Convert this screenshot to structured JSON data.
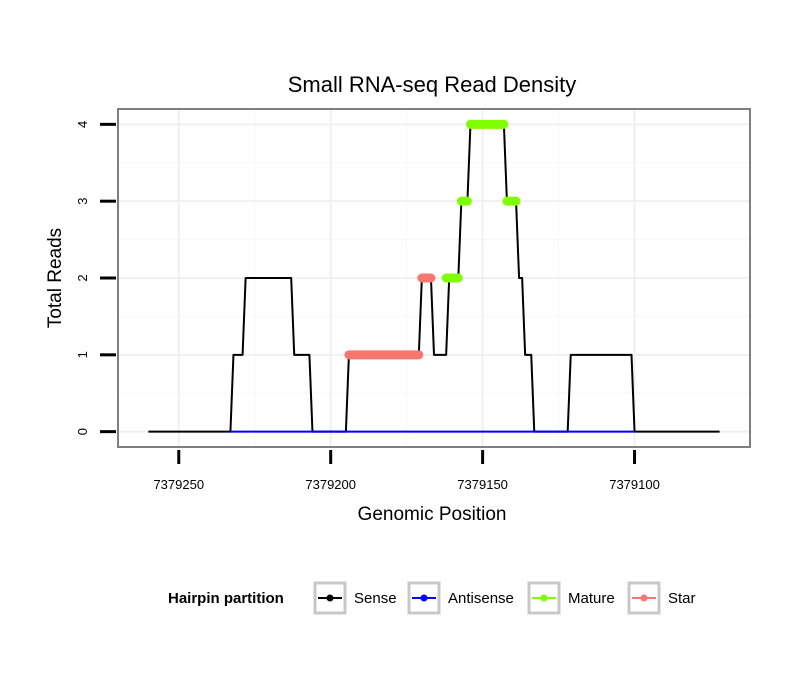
{
  "chart_data": {
    "type": "line",
    "title": "Small RNA-seq Read Density",
    "xlabel": "Genomic Position",
    "ylabel": "Total Reads",
    "x_reversed": true,
    "xlim": [
      7379270,
      7379062
    ],
    "ylim": [
      -0.2,
      4.2
    ],
    "x_ticks": [
      7379250,
      7379200,
      7379150,
      7379100
    ],
    "x_tick_labels": [
      "7379250",
      "7379200",
      "7379150",
      "7379100"
    ],
    "y_ticks": [
      0,
      1,
      2,
      3,
      4
    ],
    "y_tick_labels": [
      "0",
      "1",
      "2",
      "3",
      "4"
    ],
    "grid": true,
    "legend_title": "Hairpin partition",
    "legend_position": "bottom",
    "series": [
      {
        "name": "Sense",
        "color": "#000000",
        "points": [
          [
            7379260,
            0
          ],
          [
            7379233,
            0
          ],
          [
            7379232,
            1
          ],
          [
            7379229,
            1
          ],
          [
            7379228,
            2
          ],
          [
            7379213,
            2
          ],
          [
            7379212,
            1
          ],
          [
            7379207,
            1
          ],
          [
            7379206,
            0
          ],
          [
            7379195,
            0
          ],
          [
            7379194,
            1
          ],
          [
            7379171,
            1
          ],
          [
            7379170,
            2
          ],
          [
            7379167,
            2
          ],
          [
            7379166,
            1
          ],
          [
            7379162,
            1
          ],
          [
            7379161,
            2
          ],
          [
            7379158,
            2
          ],
          [
            7379157,
            3
          ],
          [
            7379155,
            3
          ],
          [
            7379154,
            4
          ],
          [
            7379143,
            4
          ],
          [
            7379142,
            3
          ],
          [
            7379139,
            3
          ],
          [
            7379138,
            2
          ],
          [
            7379137,
            2
          ],
          [
            7379136,
            1
          ],
          [
            7379134,
            1
          ],
          [
            7379133,
            0
          ],
          [
            7379122,
            0
          ],
          [
            7379121,
            1
          ],
          [
            7379101,
            1
          ],
          [
            7379100,
            0
          ],
          [
            7379072,
            0
          ]
        ]
      },
      {
        "name": "Antisense",
        "color": "#0000ff",
        "points": [
          [
            7379233,
            0
          ],
          [
            7379100,
            0
          ]
        ]
      },
      {
        "name": "Mature",
        "color": "#7fff00",
        "segments": [
          {
            "x_from": 7379162,
            "x_to": 7379158,
            "y": 2
          },
          {
            "x_from": 7379157,
            "x_to": 7379155,
            "y": 3
          },
          {
            "x_from": 7379154,
            "x_to": 7379143,
            "y": 4
          },
          {
            "x_from": 7379142,
            "x_to": 7379139,
            "y": 3
          }
        ]
      },
      {
        "name": "Star",
        "color": "#f8766d",
        "segments": [
          {
            "x_from": 7379194,
            "x_to": 7379171,
            "y": 1
          },
          {
            "x_from": 7379170,
            "x_to": 7379167,
            "y": 2
          }
        ]
      }
    ]
  }
}
